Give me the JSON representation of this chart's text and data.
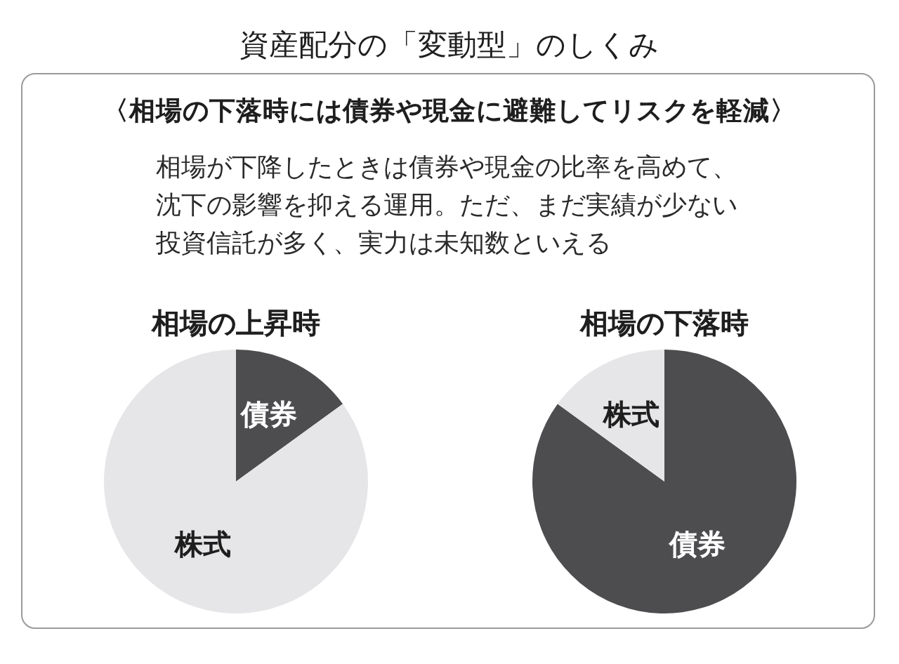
{
  "chart_data": [
    {
      "type": "other",
      "title": "資産配分の「変動型」のしくみ",
      "subtitle": "〈相場の下落時には債券や現金に避難してリスクを軽減〉",
      "annotations": [
        "相場が下降したときは債券や現金の比率を高めて、沈下の影響を抑える運用。ただ、まだ実績が少ない投資信託が多く、実力は未知数といえる"
      ]
    },
    {
      "type": "pie",
      "title": "相場の上昇時",
      "categories": [
        "債券",
        "株式"
      ],
      "values": [
        15,
        85
      ],
      "colors": [
        "#4d4d50",
        "#e6e6e8"
      ]
    },
    {
      "type": "pie",
      "title": "相場の下落時",
      "categories": [
        "債券",
        "株式"
      ],
      "values": [
        85,
        15
      ],
      "colors": [
        "#4d4d50",
        "#e6e6e8"
      ]
    }
  ]
}
